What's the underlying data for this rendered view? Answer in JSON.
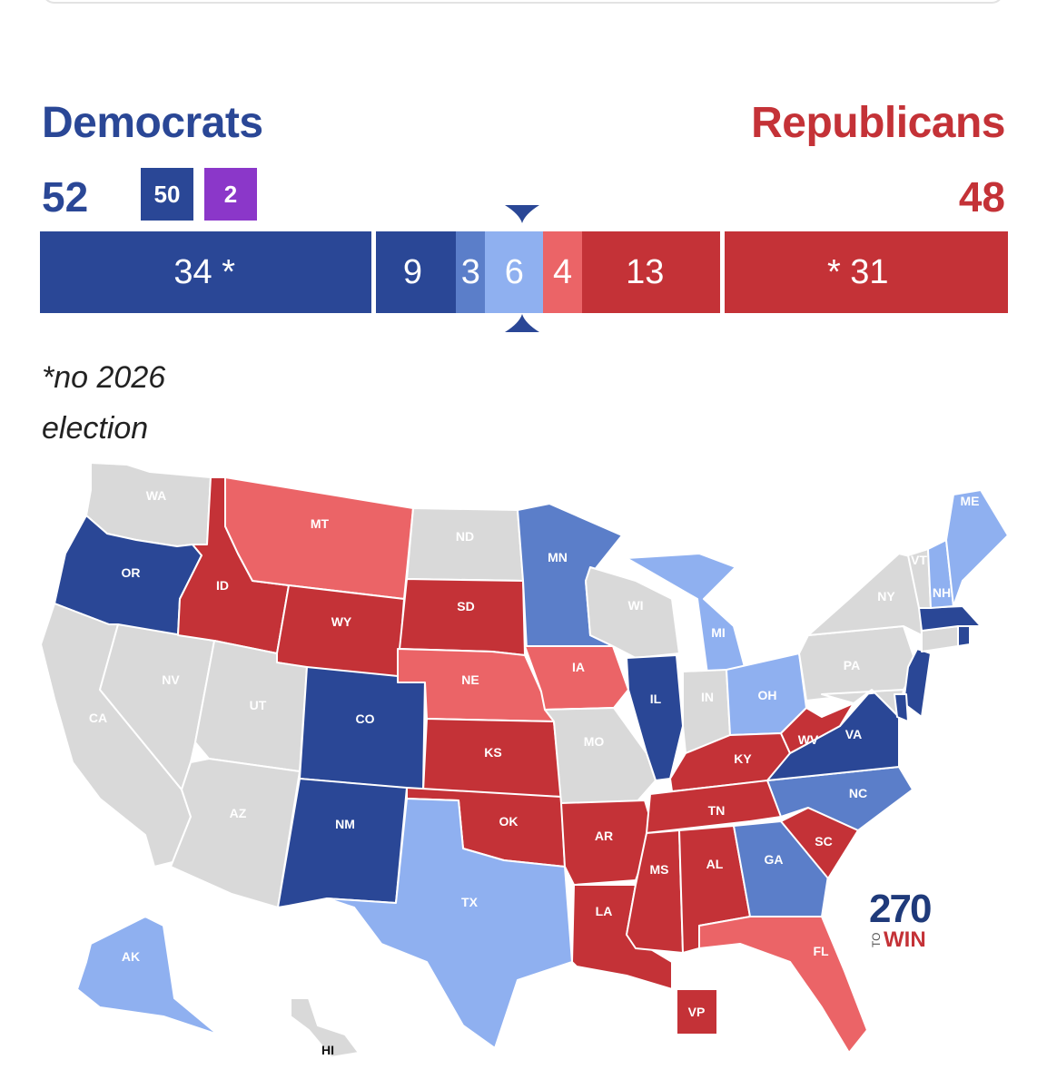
{
  "colors": {
    "dem_solid": "#2a4796",
    "dem_likely": "#5b7ec9",
    "dem_lean": "#8fb0f0",
    "rep_lean": "#eb6467",
    "rep_solid": "#c43237",
    "independent": "#8b37c9",
    "no_election": "#d9d9d9"
  },
  "header": {
    "dem_label": "Democrats",
    "rep_label": "Republicans",
    "dem_total": "52",
    "rep_total": "48",
    "dem_badge": "50",
    "ind_badge": "2"
  },
  "bar": {
    "segments": [
      {
        "label": "34 *",
        "seats": 34,
        "color": "dem_solid"
      },
      {
        "label": "9",
        "seats": 9,
        "color": "dem_solid"
      },
      {
        "label": "3",
        "seats": 3,
        "color": "dem_likely"
      },
      {
        "label": "6",
        "seats": 6,
        "color": "dem_lean"
      },
      {
        "label": "4",
        "seats": 4,
        "color": "rep_lean"
      },
      {
        "label": "13",
        "seats": 13,
        "color": "rep_solid"
      },
      {
        "label": "* 31",
        "seats": 31,
        "color": "rep_solid"
      }
    ]
  },
  "footnote": {
    "line1": "*no 2026",
    "line2": "election"
  },
  "map": {
    "states": {
      "WA": "WA",
      "OR": "OR",
      "CA": "CA",
      "NV": "NV",
      "ID": "ID",
      "MT": "MT",
      "WY": "WY",
      "UT": "UT",
      "AZ": "AZ",
      "CO": "CO",
      "NM": "NM",
      "ND": "ND",
      "SD": "SD",
      "NE": "NE",
      "KS": "KS",
      "OK": "OK",
      "TX": "TX",
      "MN": "MN",
      "IA": "IA",
      "MO": "MO",
      "AR": "AR",
      "LA": "LA",
      "WI": "WI",
      "IL": "IL",
      "MI": "MI",
      "IN": "IN",
      "OH": "OH",
      "KY": "KY",
      "TN": "TN",
      "MS": "MS",
      "AL": "AL",
      "GA": "GA",
      "FL": "FL",
      "SC": "SC",
      "NC": "NC",
      "VA": "VA",
      "WV": "WV",
      "PA": "PA",
      "NY": "NY",
      "VT": "VT",
      "NH": "NH",
      "ME": "ME",
      "AK": "AK",
      "HI": "HI",
      "VP": "VP"
    },
    "status": {
      "WA": "no_election",
      "OR": "dem_solid",
      "CA": "no_election",
      "NV": "no_election",
      "ID": "rep_solid",
      "MT": "rep_lean",
      "WY": "rep_solid",
      "UT": "no_election",
      "AZ": "no_election",
      "CO": "dem_solid",
      "NM": "dem_solid",
      "ND": "no_election",
      "SD": "rep_solid",
      "NE": "rep_lean",
      "KS": "rep_solid",
      "OK": "rep_solid",
      "TX": "dem_lean",
      "MN": "dem_likely",
      "IA": "rep_lean",
      "MO": "no_election",
      "AR": "rep_solid",
      "LA": "rep_solid",
      "WI": "no_election",
      "IL": "dem_solid",
      "MI": "dem_lean",
      "IN": "no_election",
      "OH": "dem_lean",
      "KY": "rep_solid",
      "TN": "rep_solid",
      "MS": "rep_solid",
      "AL": "rep_solid",
      "GA": "dem_likely",
      "FL": "rep_lean",
      "SC": "rep_solid",
      "NC": "dem_likely",
      "VA": "dem_solid",
      "WV": "rep_solid",
      "PA": "no_election",
      "NY": "no_election",
      "VT": "no_election",
      "NH": "dem_lean",
      "ME": "dem_lean",
      "AK": "dem_lean",
      "HI": "no_election",
      "VP": "rep_solid",
      "MA": "dem_solid",
      "NJ": "dem_solid",
      "DE": "dem_solid",
      "RI": "dem_solid",
      "CT": "no_election",
      "MD": "no_election"
    }
  },
  "logo": {
    "number": "270",
    "to": "TO",
    "win": "WIN"
  }
}
